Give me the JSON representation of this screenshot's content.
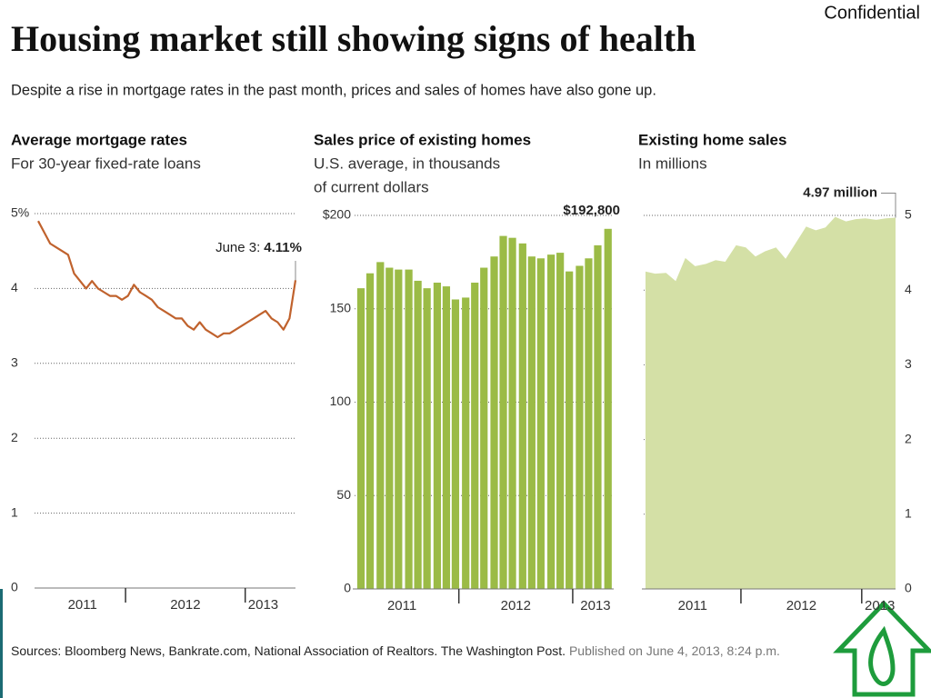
{
  "confidential": "Confidential",
  "title": "Housing market still showing signs of health",
  "subtitle": "Despite a rise in mortgage rates in the past month, prices and sales of homes have also gone up.",
  "source": "Sources: Bloomberg News, Bankrate.com, National Association of Realtors. The Washington Post.",
  "published": "Published on June 4, 2013, 8:24 p.m.",
  "chart_data": [
    {
      "type": "line",
      "title": "Average mortgage rates",
      "subtitle": [
        "For 30-year fixed-rate loans"
      ],
      "annotation": "June 3:",
      "color": "#c0622d",
      "x": [
        2011.27,
        2011.32,
        2011.37,
        2011.42,
        2011.47,
        2011.52,
        2011.57,
        2011.62,
        2011.67,
        2011.72,
        2011.77,
        2011.82,
        2011.87,
        2011.92,
        2011.97,
        2012.02,
        2012.07,
        2012.12,
        2012.17,
        2012.22,
        2012.27,
        2012.32,
        2012.37,
        2012.42,
        2012.47,
        2012.52,
        2012.57,
        2012.62,
        2012.67,
        2012.72,
        2012.77,
        2012.82,
        2012.87,
        2012.92,
        2012.97,
        2013.02,
        2013.07,
        2013.12,
        2013.17,
        2013.22,
        2013.27,
        2013.32,
        2013.37,
        2013.42
      ],
      "values": [
        4.9,
        4.75,
        4.6,
        4.55,
        4.5,
        4.45,
        4.2,
        4.1,
        4.0,
        4.1,
        4.0,
        3.95,
        3.9,
        3.9,
        3.85,
        3.9,
        4.05,
        3.95,
        3.9,
        3.85,
        3.75,
        3.7,
        3.65,
        3.6,
        3.6,
        3.5,
        3.45,
        3.55,
        3.45,
        3.4,
        3.35,
        3.4,
        3.4,
        3.45,
        3.5,
        3.55,
        3.6,
        3.65,
        3.7,
        3.6,
        3.55,
        3.45,
        3.6,
        4.11
      ],
      "value_labels": [
        null,
        null,
        null,
        null,
        null,
        null,
        null,
        null,
        null,
        null,
        null,
        null,
        null,
        null,
        null,
        null,
        null,
        null,
        null,
        null,
        null,
        null,
        null,
        null,
        null,
        null,
        null,
        null,
        null,
        null,
        null,
        null,
        null,
        null,
        null,
        null,
        null,
        null,
        null,
        null,
        null,
        null,
        null,
        "4.11%"
      ],
      "xlim": [
        2011.27,
        2013.42
      ],
      "xticks": [
        {
          "value": 2011.64,
          "label": "2011"
        },
        {
          "value": 2012.5,
          "label": "2012"
        },
        {
          "value": 2013.15,
          "label": "2013"
        }
      ],
      "xdividers": [
        2012,
        2013
      ],
      "ylim": [
        0,
        5
      ],
      "yticks": [
        0,
        1,
        2,
        3,
        4,
        {
          "value": 5,
          "label": "5%"
        }
      ],
      "grid": true,
      "y_axis_position": "left"
    },
    {
      "type": "bar",
      "title": "Sales price of existing homes",
      "subtitle": [
        "U.S. average, in thousands",
        "of current dollars"
      ],
      "color": "#9bbb46",
      "x": [
        2011.14,
        2011.22,
        2011.31,
        2011.39,
        2011.47,
        2011.56,
        2011.64,
        2011.72,
        2011.81,
        2011.89,
        2011.97,
        2012.06,
        2012.14,
        2012.22,
        2012.31,
        2012.39,
        2012.47,
        2012.56,
        2012.64,
        2012.72,
        2012.81,
        2012.89,
        2012.97,
        2013.06,
        2013.14,
        2013.22,
        2013.31
      ],
      "values": [
        161,
        169,
        175,
        172,
        171,
        171,
        165,
        161,
        164,
        162,
        155,
        156,
        164,
        172,
        178,
        189,
        188,
        185,
        178,
        177,
        179,
        180,
        170,
        173,
        177,
        184,
        192.8
      ],
      "value_labels": [
        null,
        null,
        null,
        null,
        null,
        null,
        null,
        null,
        null,
        null,
        null,
        null,
        null,
        null,
        null,
        null,
        null,
        null,
        null,
        null,
        null,
        null,
        null,
        null,
        null,
        null,
        "$192,800"
      ],
      "xlim": [
        2011.1,
        2013.36
      ],
      "xticks": [
        {
          "value": 2011.5,
          "label": "2011"
        },
        {
          "value": 2012.5,
          "label": "2012"
        },
        {
          "value": 2013.2,
          "label": "2013"
        }
      ],
      "xdividers": [
        2012,
        2013
      ],
      "ylim": [
        0,
        200
      ],
      "yticks": [
        0,
        50,
        100,
        150,
        {
          "value": 200,
          "label": "$200"
        }
      ],
      "grid": true,
      "y_axis_position": "left"
    },
    {
      "type": "area",
      "title": "Existing home sales",
      "subtitle": [
        "In millions"
      ],
      "color": "#d4e0a6",
      "x": [
        2011.21,
        2011.29,
        2011.38,
        2011.46,
        2011.54,
        2011.62,
        2011.71,
        2011.79,
        2011.87,
        2011.96,
        2012.04,
        2012.12,
        2012.2,
        2012.29,
        2012.37,
        2012.45,
        2012.54,
        2012.62,
        2012.7,
        2012.78,
        2012.87,
        2012.95,
        2013.03,
        2013.12,
        2013.2,
        2013.28
      ],
      "values": [
        4.25,
        4.22,
        4.23,
        4.12,
        4.43,
        4.32,
        4.35,
        4.4,
        4.38,
        4.6,
        4.57,
        4.45,
        4.52,
        4.57,
        4.42,
        4.62,
        4.85,
        4.8,
        4.84,
        4.98,
        4.92,
        4.95,
        4.96,
        4.94,
        4.96,
        4.97
      ],
      "value_labels": [
        null,
        null,
        null,
        null,
        null,
        null,
        null,
        null,
        null,
        null,
        null,
        null,
        null,
        null,
        null,
        null,
        null,
        null,
        null,
        null,
        null,
        null,
        null,
        null,
        null,
        "4.97 million"
      ],
      "xlim": [
        2011.21,
        2013.28
      ],
      "xticks": [
        {
          "value": 2011.6,
          "label": "2011"
        },
        {
          "value": 2012.5,
          "label": "2012"
        },
        {
          "value": 2013.15,
          "label": "2013"
        }
      ],
      "xdividers": [
        2012,
        2013
      ],
      "ylim": [
        0,
        5
      ],
      "yticks": [
        0,
        1,
        2,
        3,
        4,
        5
      ],
      "grid": true,
      "y_axis_position": "right"
    }
  ]
}
